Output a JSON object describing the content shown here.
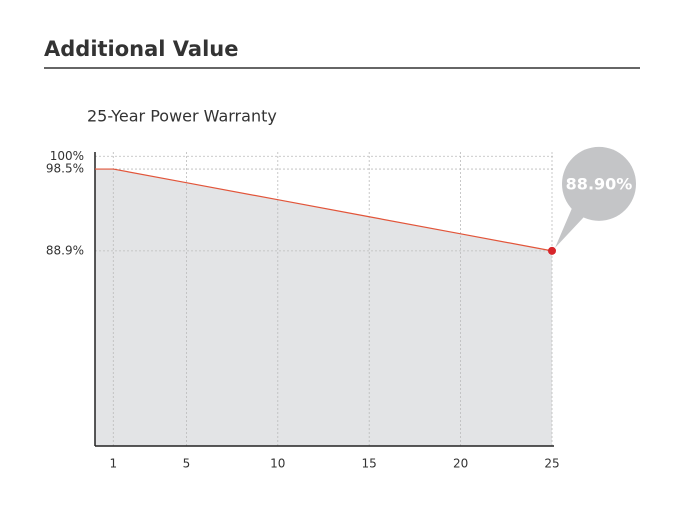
{
  "header": {
    "title": "Additional Value"
  },
  "chart_data": {
    "type": "area",
    "title": "25-Year Power Warranty",
    "x": [
      0,
      1,
      5,
      10,
      15,
      20,
      25
    ],
    "values": [
      98.5,
      98.5,
      96.9,
      94.9,
      92.9,
      90.9,
      88.9
    ],
    "color": "#e2553a",
    "fill_color": "#e3e4e6",
    "marker_color": "#d7262b",
    "annotation": "88.90%",
    "annotation_color": "#c4c5c7",
    "xlim": [
      0,
      25
    ],
    "xticks": [
      1,
      5,
      10,
      15,
      20,
      25
    ],
    "ylim": [
      66,
      100.5
    ],
    "yticks": [
      {
        "value": 100,
        "label": "100%"
      },
      {
        "value": 98.5,
        "label": "98.5%"
      },
      {
        "value": 88.9,
        "label": "88.9%"
      }
    ],
    "grid": true
  }
}
